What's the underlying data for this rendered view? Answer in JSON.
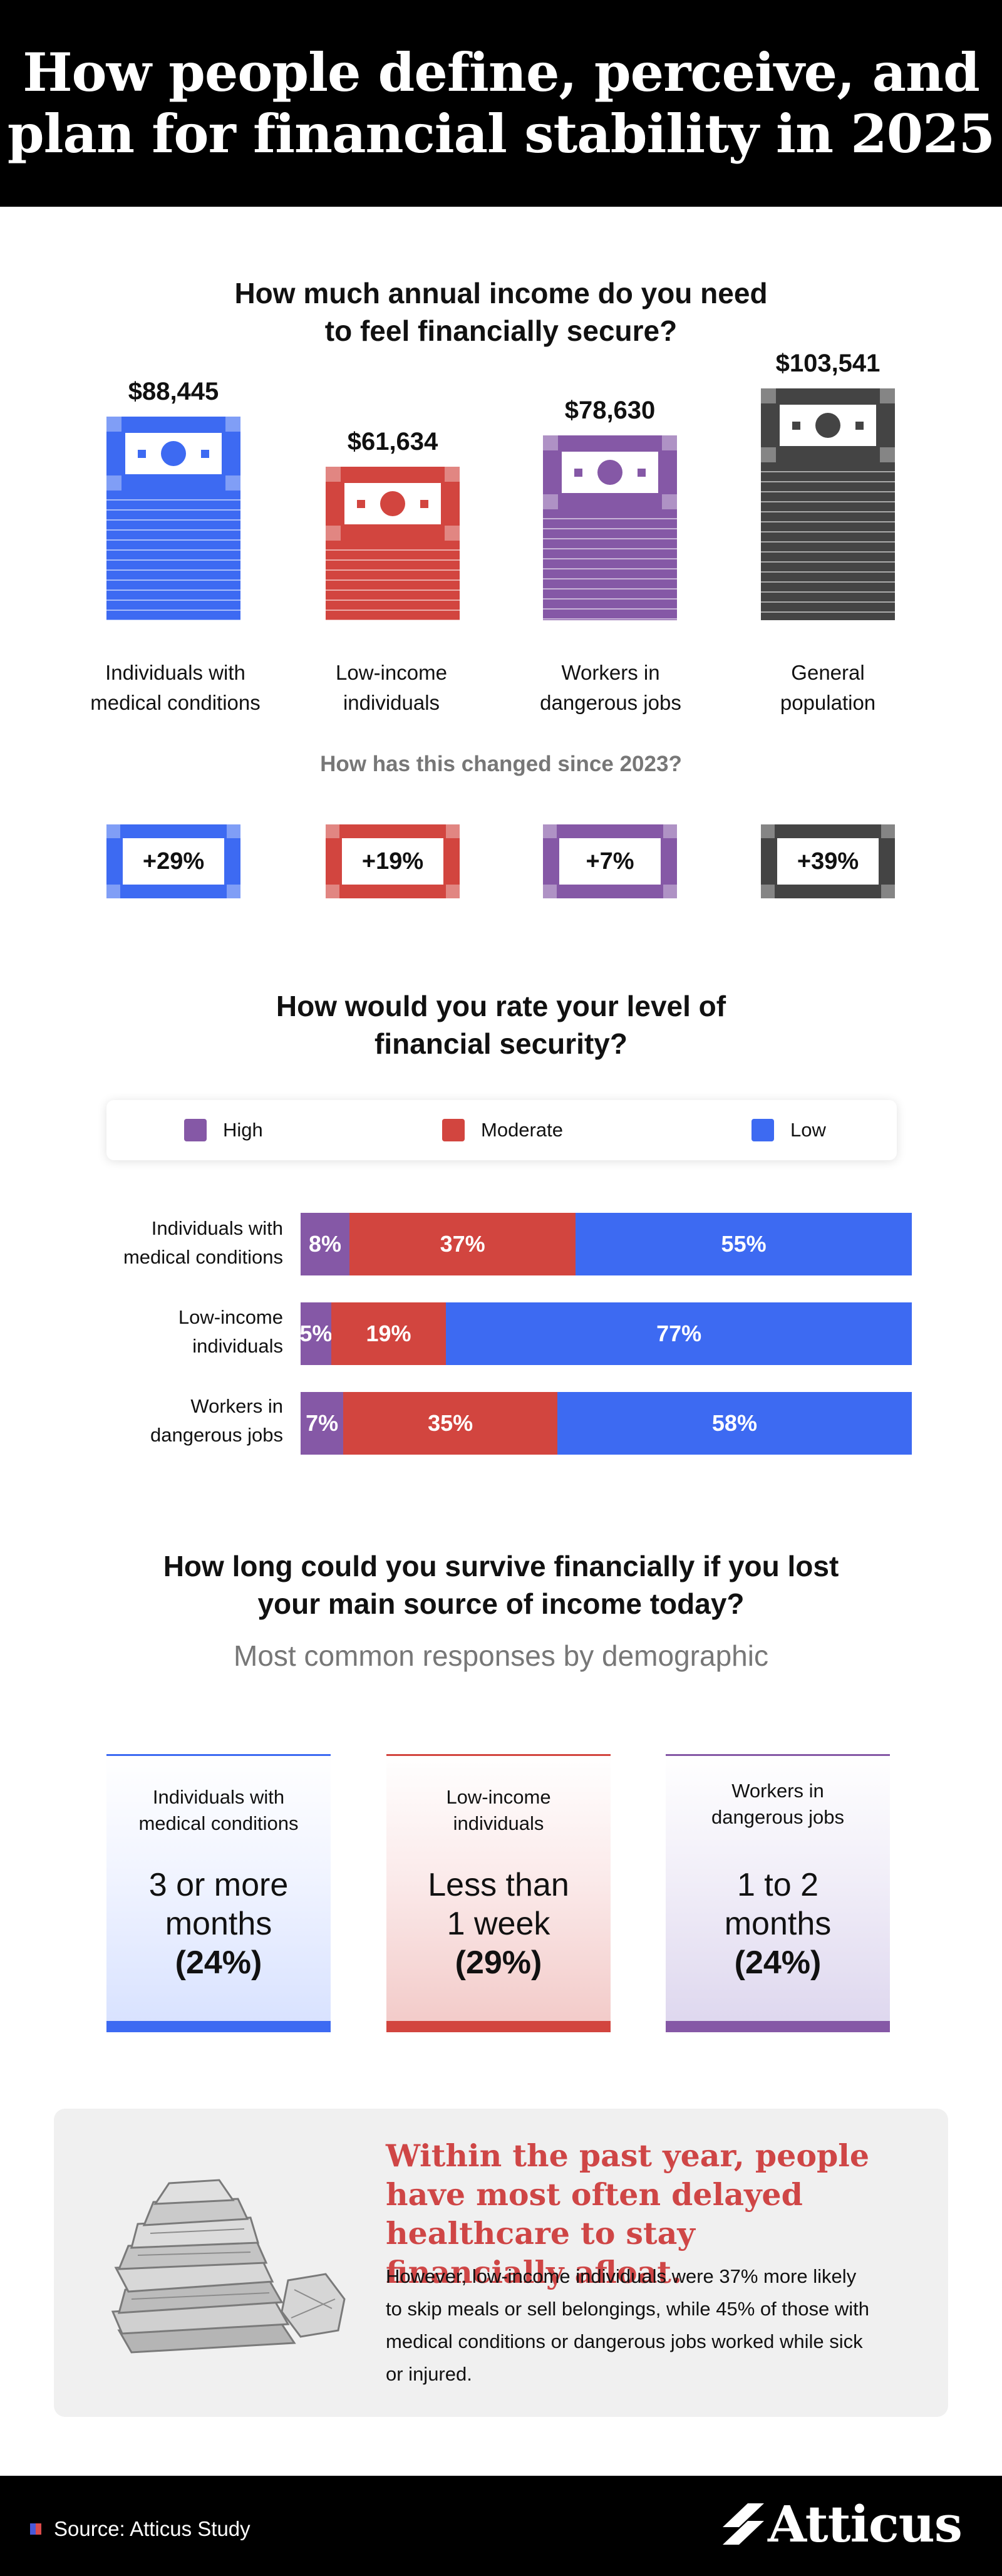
{
  "header": {
    "title_line1": "How people define, perceive, and",
    "title_line2": "plan for financial stability in 2025"
  },
  "colors": {
    "medical": "#3d6af2",
    "low_income": "#d2453f",
    "dangerous": "#8558a6",
    "general": "#444444"
  },
  "income": {
    "title_line1": "How much annual income do you need",
    "title_line2": "to feel financially secure?",
    "groups": [
      {
        "amount": "$88,445",
        "label_line1": "Individuals with",
        "label_line2": "medical conditions",
        "change": "+29%"
      },
      {
        "amount": "$61,634",
        "label_line1": "Low-income",
        "label_line2": "individuals",
        "change": "+19%"
      },
      {
        "amount": "$78,630",
        "label_line1": "Workers in",
        "label_line2": "dangerous jobs",
        "change": "+7%"
      },
      {
        "amount": "$103,541",
        "label_line1": "General",
        "label_line2": "population",
        "change": "+39%"
      }
    ],
    "change_question": "How has this changed since 2023?"
  },
  "security": {
    "title_line1": "How would you rate your level of",
    "title_line2": "financial security?",
    "legend": {
      "high": "High",
      "moderate": "Moderate",
      "low": "Low"
    },
    "rows": [
      {
        "label_line1": "Individuals with",
        "label_line2": "medical conditions",
        "high": "8%",
        "moderate": "37%",
        "low": "55%"
      },
      {
        "label_line1": "Low-income",
        "label_line2": "individuals",
        "high": "5%",
        "moderate": "19%",
        "low": "77%"
      },
      {
        "label_line1": "Workers in",
        "label_line2": "dangerous jobs",
        "high": "7%",
        "moderate": "35%",
        "low": "58%"
      }
    ]
  },
  "survive": {
    "title_line1": "How long could you survive financially if you lost",
    "title_line2": "your main source of income today?",
    "subtitle": "Most common responses by demographic",
    "cards": [
      {
        "label_line1": "Individuals with",
        "label_line2": "medical conditions",
        "answer_line1": "3 or more",
        "answer_line2": "months",
        "pct": "(24%)"
      },
      {
        "label_line1": "Low-income",
        "label_line2": "individuals",
        "answer_line1": "Less than",
        "answer_line2": "1 week",
        "pct": "(29%)"
      },
      {
        "label_line1": "Workers in",
        "label_line2": "dangerous jobs",
        "answer_line1": "1 to 2",
        "answer_line2": "months",
        "pct": "(24%)"
      }
    ]
  },
  "callout": {
    "title": "Within the past year, people have most often delayed healthcare to stay financially afloat.",
    "body": "However, low-income individuals were 37% more likely to skip meals or sell belongings, while 45% of those with medical conditions or dangerous jobs worked while sick or injured."
  },
  "footer": {
    "source": "Source: Atticus Study",
    "logo": "Atticus"
  },
  "chart_data": [
    {
      "type": "bar",
      "title": "How much annual income do you need to feel financially secure?",
      "categories": [
        "Individuals with medical conditions",
        "Low-income individuals",
        "Workers in dangerous jobs",
        "General population"
      ],
      "values": [
        88445,
        61634,
        78630,
        103541
      ],
      "annotations": {
        "change_since_2023": [
          "+29%",
          "+19%",
          "+7%",
          "+39%"
        ]
      }
    },
    {
      "type": "bar",
      "stacked": true,
      "horizontal": true,
      "title": "How would you rate your level of financial security?",
      "categories": [
        "Individuals with medical conditions",
        "Low-income individuals",
        "Workers in dangerous jobs"
      ],
      "series": [
        {
          "name": "High",
          "values": [
            8,
            5,
            7
          ]
        },
        {
          "name": "Moderate",
          "values": [
            37,
            19,
            35
          ]
        },
        {
          "name": "Low",
          "values": [
            55,
            77,
            58
          ]
        }
      ],
      "legend": "top"
    }
  ]
}
